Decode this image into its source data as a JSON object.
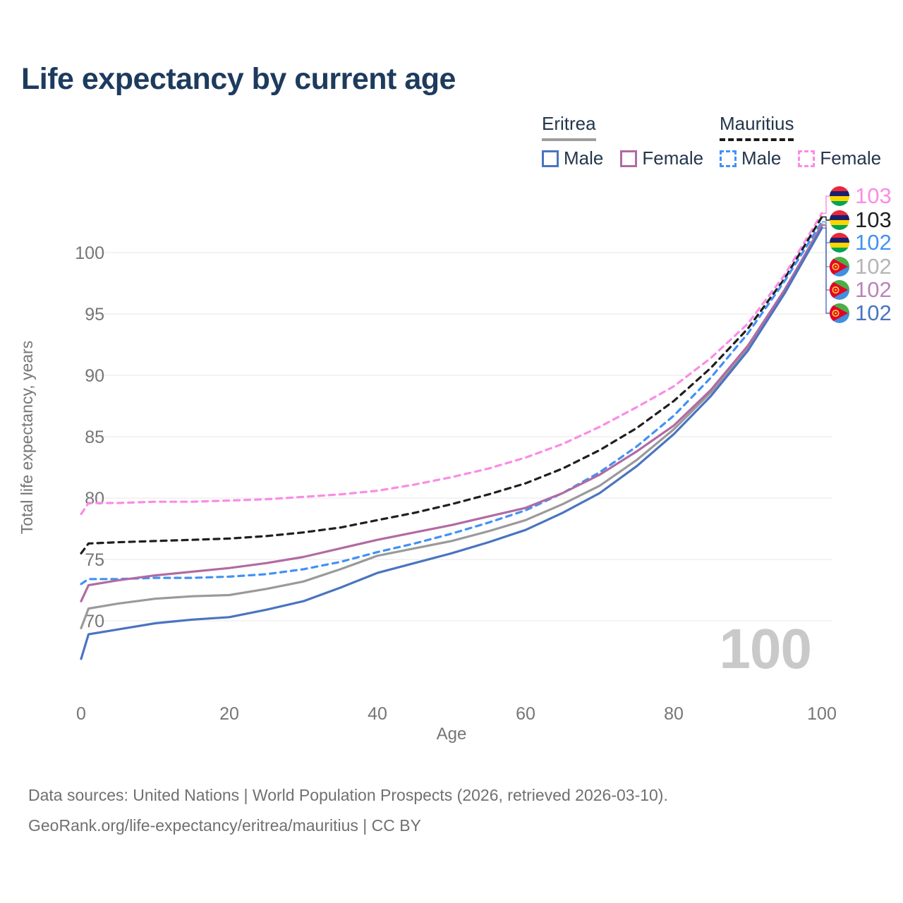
{
  "title": "Life expectancy by current age",
  "legend": {
    "groups": [
      {
        "country": "Eritrea",
        "items": [
          {
            "label": "Male"
          },
          {
            "label": "Female"
          }
        ]
      },
      {
        "country": "Mauritius",
        "items": [
          {
            "label": "Male"
          },
          {
            "label": "Female"
          }
        ]
      }
    ]
  },
  "colors": {
    "eritrea_male": "#4a74c0",
    "eritrea_female": "#b16ba2",
    "eritrea_total": "#9a9a9a",
    "mauritius_male": "#4191f5",
    "mauritius_female": "#fb8ce4",
    "mauritius_total": "#1f1f1f",
    "title_text": "#1d3b5e",
    "axis_text": "#767676",
    "gridline": "#ececec",
    "watermark": "#c9c9c9"
  },
  "watermark": "100",
  "footer": {
    "line1": "Data sources: United Nations | World Population Prospects (2026, retrieved 2026-03-10).",
    "line2": "GeoRank.org/life-expectancy/eritrea/mauritius | CC BY"
  },
  "chart_data": {
    "type": "line",
    "title": "Life expectancy by current age",
    "xlabel": "Age",
    "ylabel": "Total life expectancy, years",
    "xlim": [
      0,
      100
    ],
    "ylim": [
      66,
      104
    ],
    "xticks": [
      0,
      20,
      40,
      60,
      80,
      100
    ],
    "yticks": [
      70,
      75,
      80,
      85,
      90,
      95,
      100
    ],
    "grid": "horizontal",
    "legend_position": "top-right",
    "x": [
      0,
      1,
      5,
      10,
      15,
      20,
      25,
      30,
      35,
      40,
      45,
      50,
      55,
      60,
      65,
      70,
      75,
      80,
      85,
      90,
      95,
      100
    ],
    "series": [
      {
        "name": "Mauritius Female",
        "country": "Mauritius",
        "sex": "Female",
        "dashed": true,
        "color": "#fb8ce4",
        "flag": "mauritius",
        "end_label": "103",
        "label_color": "#fb8ce4",
        "values": [
          78.7,
          79.6,
          79.6,
          79.7,
          79.7,
          79.8,
          79.9,
          80.1,
          80.3,
          80.6,
          81.1,
          81.7,
          82.4,
          83.3,
          84.4,
          85.8,
          87.4,
          89.1,
          91.4,
          94.2,
          98.2,
          103.2
        ]
      },
      {
        "name": "Mauritius Both sexes",
        "country": "Mauritius",
        "sex": "Both",
        "dashed": true,
        "color": "#1f1f1f",
        "flag": "mauritius",
        "end_label": "103",
        "label_color": "#1f1f1f",
        "values": [
          75.5,
          76.3,
          76.4,
          76.5,
          76.6,
          76.7,
          76.9,
          77.2,
          77.6,
          78.2,
          78.8,
          79.5,
          80.3,
          81.2,
          82.4,
          83.9,
          85.7,
          87.9,
          90.6,
          93.8,
          97.9,
          102.9
        ]
      },
      {
        "name": "Mauritius Male",
        "country": "Mauritius",
        "sex": "Male",
        "dashed": true,
        "color": "#4191f5",
        "flag": "mauritius",
        "end_label": "102",
        "label_color": "#4191f5",
        "values": [
          73.0,
          73.4,
          73.4,
          73.5,
          73.5,
          73.6,
          73.8,
          74.2,
          74.8,
          75.6,
          76.3,
          77.1,
          78.0,
          79.0,
          80.4,
          82.1,
          84.2,
          86.7,
          89.8,
          93.4,
          97.7,
          102.5
        ]
      },
      {
        "name": "Eritrea Both sexes",
        "country": "Eritrea",
        "sex": "Both",
        "dashed": false,
        "color": "#9a9a9a",
        "flag": "eritrea",
        "end_label": "102",
        "label_color": "#b5b5b5",
        "values": [
          69.4,
          71.0,
          71.4,
          71.8,
          72.0,
          72.1,
          72.6,
          73.2,
          74.2,
          75.3,
          75.9,
          76.5,
          77.3,
          78.2,
          79.5,
          81.0,
          83.1,
          85.6,
          88.6,
          92.2,
          96.9,
          102.3
        ]
      },
      {
        "name": "Eritrea Female",
        "country": "Eritrea",
        "sex": "Female",
        "dashed": false,
        "color": "#b16ba2",
        "flag": "eritrea",
        "end_label": "102",
        "label_color": "#b983b9",
        "values": [
          71.6,
          72.9,
          73.3,
          73.7,
          74.0,
          74.3,
          74.7,
          75.2,
          75.9,
          76.6,
          77.2,
          77.8,
          78.5,
          79.2,
          80.4,
          81.9,
          83.8,
          85.9,
          88.8,
          92.4,
          97.0,
          102.2
        ]
      },
      {
        "name": "Eritrea Male",
        "country": "Eritrea",
        "sex": "Male",
        "dashed": false,
        "color": "#4a74c0",
        "flag": "eritrea",
        "end_label": "102",
        "label_color": "#4a74c0",
        "values": [
          66.9,
          68.9,
          69.3,
          69.8,
          70.1,
          70.3,
          70.9,
          71.6,
          72.7,
          73.9,
          74.7,
          75.5,
          76.4,
          77.4,
          78.8,
          80.4,
          82.6,
          85.2,
          88.3,
          92.0,
          96.7,
          102.0
        ]
      }
    ]
  }
}
